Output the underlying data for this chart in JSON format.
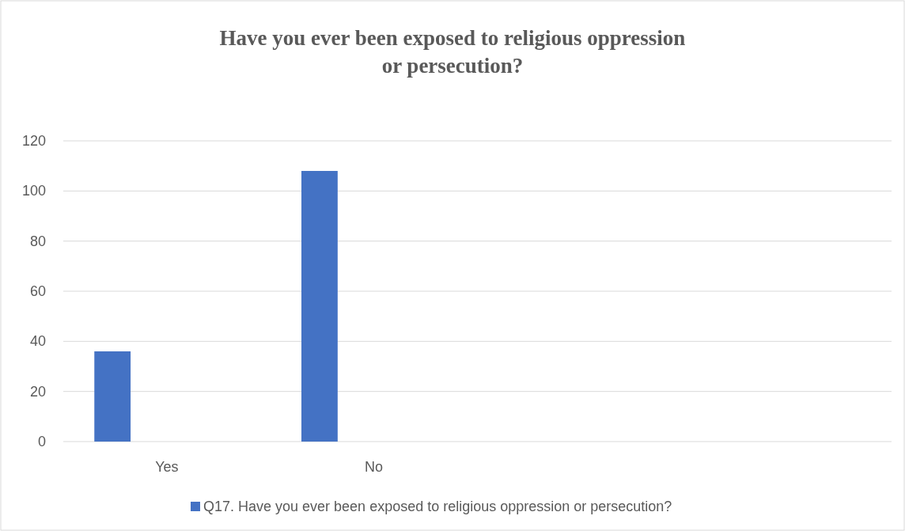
{
  "chart_data": {
    "type": "bar",
    "title": "Have you ever been exposed to religious oppression or persecution?",
    "categories": [
      "Yes",
      "No",
      null,
      null
    ],
    "series": [
      {
        "name": "Q17.  Have you ever been exposed to religious oppression or persecution?",
        "color": "#4472c4",
        "values": [
          36,
          108,
          null,
          null
        ]
      }
    ],
    "ylim": [
      0,
      120
    ],
    "yticks": [
      0,
      20,
      40,
      60,
      80,
      100,
      120
    ],
    "grid": "y",
    "legend": "bottom"
  }
}
